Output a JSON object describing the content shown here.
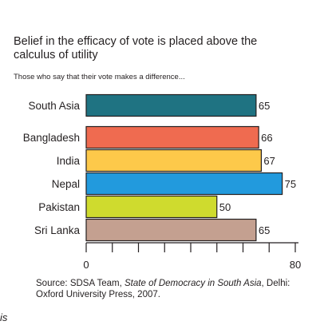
{
  "chart_data": {
    "type": "bar",
    "orientation": "horizontal",
    "title": "Belief in the efficacy of vote is placed above the calculus of utility",
    "subtitle": "Those who say that their vote makes a difference...",
    "categories": [
      "South Asia",
      "Bangladesh",
      "India",
      "Nepal",
      "Pakistan",
      "Sri Lanka"
    ],
    "values": [
      65,
      66,
      67,
      75,
      50,
      65
    ],
    "colors": [
      "#1f7382",
      "#ef6b50",
      "#fdc94a",
      "#229add",
      "#cfdb2e",
      "#c4a090"
    ],
    "xlim": [
      0,
      80
    ],
    "x_tick_labels": [
      "0",
      "80"
    ],
    "grid": false,
    "legend": "none"
  },
  "source": {
    "prefix": "Source: SDSA Team, ",
    "book": "State of Democracy in South Asia",
    "suffix": ", Delhi: Oxford University Press, 2007."
  },
  "fragment_text": "is"
}
